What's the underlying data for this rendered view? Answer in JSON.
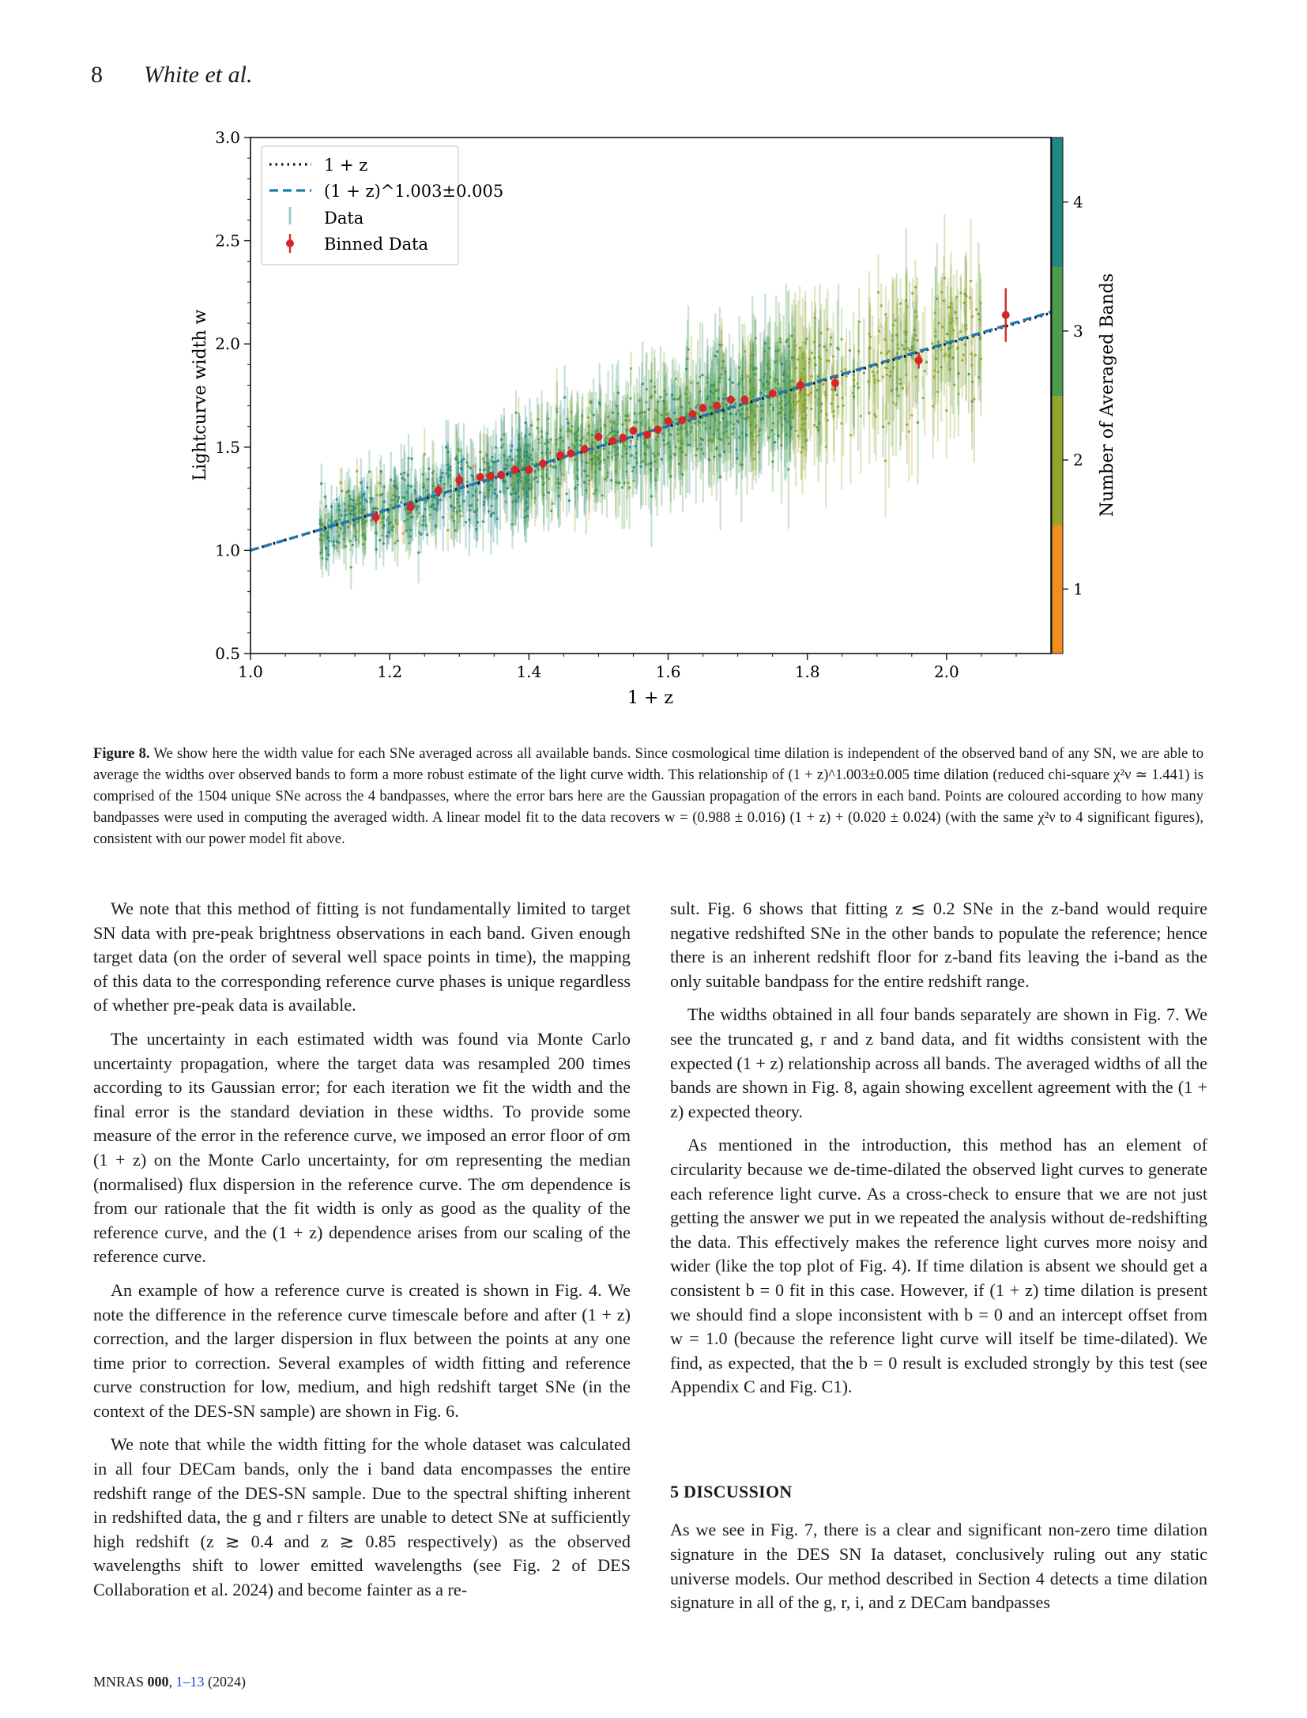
{
  "header": {
    "page_number": "8",
    "authors": "White et al."
  },
  "chart_data": {
    "type": "scatter",
    "xlabel": "1 + z",
    "ylabel": "Lightcurve width w",
    "xlim": [
      1.0,
      2.15
    ],
    "ylim": [
      0.5,
      3.0
    ],
    "xticks": [
      "1.0",
      "1.2",
      "1.4",
      "1.6",
      "1.8",
      "2.0"
    ],
    "yticks": [
      "0.5",
      "1.0",
      "1.5",
      "2.0",
      "2.5",
      "3.0"
    ],
    "colorbar": {
      "label": "Number of Averaged Bands",
      "ticks": [
        "1",
        "2",
        "3",
        "4"
      ],
      "colors": [
        "#f28e1c",
        "#8fa62b",
        "#4c9b4a",
        "#1f8a85"
      ]
    },
    "legend": {
      "position": "top-left",
      "entries": [
        "1 + z",
        "(1 + z)^1.003±0.005",
        "Data",
        "Binned Data"
      ]
    },
    "model_lines": [
      {
        "name": "1 + z",
        "style": "dotted",
        "color": "#111111",
        "exponent": 1.0
      },
      {
        "name": "(1 + z)^1.003±0.005",
        "style": "dashed",
        "color": "#1f77b4",
        "exponent": 1.003
      }
    ],
    "binned_data": {
      "color": "#d62728",
      "x": [
        1.18,
        1.23,
        1.27,
        1.3,
        1.33,
        1.345,
        1.36,
        1.38,
        1.4,
        1.42,
        1.445,
        1.46,
        1.48,
        1.5,
        1.52,
        1.535,
        1.55,
        1.57,
        1.585,
        1.6,
        1.62,
        1.635,
        1.65,
        1.67,
        1.69,
        1.71,
        1.75,
        1.79,
        1.84,
        1.96,
        2.085
      ],
      "y": [
        1.16,
        1.21,
        1.29,
        1.34,
        1.355,
        1.36,
        1.365,
        1.39,
        1.39,
        1.42,
        1.46,
        1.47,
        1.49,
        1.55,
        1.53,
        1.545,
        1.58,
        1.56,
        1.585,
        1.625,
        1.63,
        1.66,
        1.69,
        1.7,
        1.73,
        1.73,
        1.76,
        1.8,
        1.81,
        1.92,
        2.14
      ],
      "yerr": [
        0.03,
        0.03,
        0.03,
        0.03,
        0.02,
        0.02,
        0.02,
        0.02,
        0.02,
        0.02,
        0.02,
        0.02,
        0.02,
        0.02,
        0.02,
        0.02,
        0.02,
        0.02,
        0.02,
        0.02,
        0.02,
        0.02,
        0.02,
        0.02,
        0.02,
        0.02,
        0.02,
        0.03,
        0.04,
        0.04,
        0.13
      ]
    }
  },
  "caption": {
    "label": "Figure 8.",
    "text": "We show here the width value for each SNe averaged across all available bands. Since cosmological time dilation is independent of the observed band of any SN, we are able to average the widths over observed bands to form a more robust estimate of the light curve width. This relationship of (1 + z)^1.003±0.005 time dilation (reduced chi-square χ²ν ≃ 1.441) is comprised of the 1504 unique SNe across the 4 bandpasses, where the error bars here are the Gaussian propagation of the errors in each band. Points are coloured according to how many bandpasses were used in computing the averaged width. A linear model fit to the data recovers w = (0.988 ± 0.016) (1 + z) + (0.020 ± 0.024) (with the same χ²ν to 4 significant figures), consistent with our power model fit above."
  },
  "body": {
    "left": [
      "We note that this method of fitting is not fundamentally limited to target SN data with pre-peak brightness observations in each band. Given enough target data (on the order of several well space points in time), the mapping of this data to the corresponding reference curve phases is unique regardless of whether pre-peak data is available.",
      "The uncertainty in each estimated width was found via Monte Carlo uncertainty propagation, where the target data was resampled 200 times according to its Gaussian error; for each iteration we fit the width and the final error is the standard deviation in these widths. To provide some measure of the error in the reference curve, we imposed an error floor of σm (1 + z) on the Monte Carlo uncertainty, for σm representing the median (normalised) flux dispersion in the reference curve. The σm dependence is from our rationale that the fit width is only as good as the quality of the reference curve, and the (1 + z) dependence arises from our scaling of the reference curve.",
      "An example of how a reference curve is created is shown in Fig. 4. We note the difference in the reference curve timescale before and after (1 + z) correction, and the larger dispersion in flux between the points at any one time prior to correction. Several examples of width fitting and reference curve construction for low, medium, and high redshift target SNe (in the context of the DES-SN sample) are shown in Fig. 6.",
      "We note that while the width fitting for the whole dataset was calculated in all four DECam bands, only the i band data encompasses the entire redshift range of the DES-SN sample. Due to the spectral shifting inherent in redshifted data, the g and r filters are unable to detect SNe at sufficiently high redshift (z ≳ 0.4 and z ≳ 0.85 respectively) as the observed wavelengths shift to lower emitted wavelengths (see Fig. 2 of DES Collaboration et al. 2024) and become fainter as a re-"
    ],
    "right": [
      "sult. Fig. 6 shows that fitting z ≲ 0.2 SNe in the z-band would require negative redshifted SNe in the other bands to populate the reference; hence there is an inherent redshift floor for z-band fits leaving the i-band as the only suitable bandpass for the entire redshift range.",
      "The widths obtained in all four bands separately are shown in Fig. 7. We see the truncated g, r and z band data, and fit widths consistent with the expected (1 + z) relationship across all bands. The averaged widths of all the bands are shown in Fig. 8, again showing excellent agreement with the (1 + z) expected theory.",
      "As mentioned in the introduction, this method has an element of circularity because we de-time-dilated the observed light curves to generate each reference light curve. As a cross-check to ensure that we are not just getting the answer we put in we repeated the analysis without de-redshifting the data. This effectively makes the reference light curves more noisy and wider (like the top plot of Fig. 4). If time dilation is absent we should get a consistent b = 0 fit in this case. However, if (1 + z) time dilation is present we should find a slope inconsistent with b = 0 and an intercept offset from w = 1.0 (because the reference light curve will itself be time-dilated). We find, as expected, that the b = 0 result is excluded strongly by this test (see Appendix C and Fig. C1).",
      "As we see in Fig. 7, there is a clear and significant non-zero time dilation signature in the DES SN Ia dataset, conclusively ruling out any static universe models. Our method described in Section 4 detects a time dilation signature in all of the g, r, i, and z DECam bandpasses"
    ],
    "section_heading": "5  DISCUSSION"
  },
  "footer": {
    "journal": "MNRAS",
    "volume": "000",
    "pages": "1–13",
    "year": "(2024)"
  }
}
